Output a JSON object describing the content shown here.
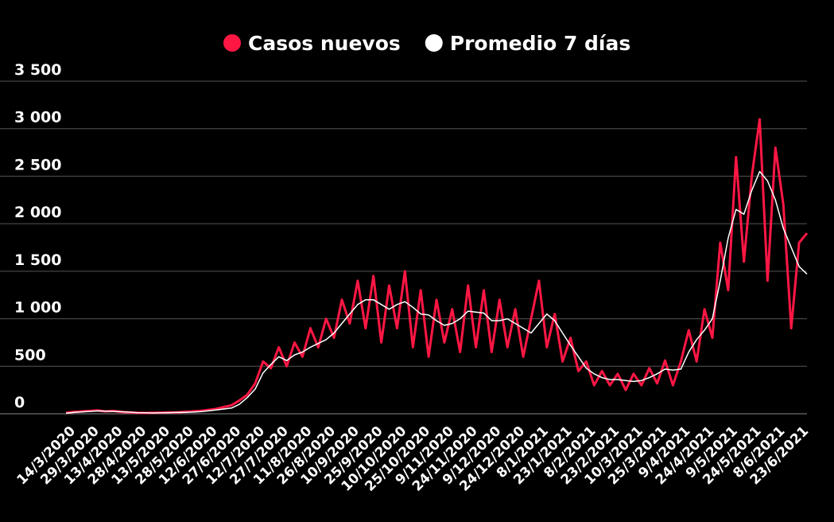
{
  "chart_data": {
    "type": "line",
    "categories": [
      "14/3/2020",
      null,
      null,
      "29/3/2020",
      null,
      null,
      "13/4/2020",
      null,
      null,
      "28/4/2020",
      null,
      null,
      "13/5/2020",
      null,
      null,
      "28/5/2020",
      null,
      null,
      "12/6/2020",
      null,
      null,
      "27/6/2020",
      null,
      null,
      "12/7/2020",
      null,
      null,
      "27/7/2020",
      null,
      null,
      "11/8/2020",
      null,
      null,
      "26/8/2020",
      null,
      null,
      "10/9/2020",
      null,
      null,
      "25/9/2020",
      null,
      null,
      "10/10/2020",
      null,
      null,
      "25/10/2020",
      null,
      null,
      "9/11/2020",
      null,
      null,
      "24/11/2020",
      null,
      null,
      "9/12/2020",
      null,
      null,
      "24/12/2020",
      null,
      null,
      "8/1/2021",
      null,
      null,
      "23/1/2021",
      null,
      null,
      "8/2/2021",
      null,
      null,
      "23/2/2021",
      null,
      null,
      "10/3/2021",
      null,
      null,
      "25/3/2021",
      null,
      null,
      "9/4/2021",
      null,
      null,
      "24/4/2021",
      null,
      null,
      "9/5/2021",
      null,
      null,
      "24/5/2021",
      null,
      null,
      "8/6/2021",
      null,
      null,
      "23/6/2021",
      null
    ],
    "series": [
      {
        "name": "Casos nuevos",
        "color": "#ff1744",
        "values": [
          10,
          20,
          25,
          30,
          35,
          25,
          30,
          20,
          15,
          10,
          8,
          10,
          12,
          15,
          15,
          20,
          25,
          30,
          40,
          50,
          70,
          90,
          140,
          200,
          320,
          550,
          480,
          700,
          500,
          750,
          600,
          900,
          700,
          1000,
          800,
          1200,
          950,
          1400,
          900,
          1450,
          750,
          1350,
          900,
          1500,
          700,
          1300,
          600,
          1200,
          750,
          1100,
          650,
          1350,
          700,
          1300,
          650,
          1200,
          700,
          1100,
          600,
          1000,
          1400,
          700,
          1050,
          550,
          800,
          450,
          550,
          300,
          450,
          300,
          420,
          250,
          420,
          300,
          480,
          320,
          560,
          300,
          550,
          880,
          550,
          1100,
          800,
          1800,
          1300,
          2700,
          1600,
          2500,
          3100,
          1400,
          2800,
          2200,
          900,
          1800,
          1900
        ]
      },
      {
        "name": "Promedio 7 días",
        "color": "#ffffff",
        "values": [
          5,
          15,
          20,
          25,
          30,
          28,
          25,
          22,
          18,
          12,
          10,
          8,
          10,
          12,
          14,
          15,
          18,
          22,
          30,
          40,
          50,
          60,
          100,
          170,
          260,
          430,
          520,
          600,
          560,
          620,
          650,
          700,
          740,
          780,
          850,
          950,
          1050,
          1150,
          1200,
          1200,
          1150,
          1100,
          1150,
          1180,
          1120,
          1050,
          1040,
          980,
          930,
          950,
          1000,
          1080,
          1070,
          1060,
          980,
          980,
          1000,
          950,
          900,
          850,
          950,
          1050,
          980,
          850,
          720,
          600,
          480,
          420,
          380,
          360,
          360,
          350,
          340,
          350,
          380,
          420,
          470,
          460,
          470,
          650,
          780,
          880,
          1000,
          1400,
          1850,
          2150,
          2100,
          2350,
          2550,
          2450,
          2250,
          1950,
          1750,
          1550,
          1470
        ]
      }
    ],
    "ylim": [
      0,
      3500
    ],
    "yticks": [
      0,
      500,
      {
        "value": 1000,
        "label": "1 000"
      },
      {
        "value": 1500,
        "label": "1 500"
      },
      {
        "value": 2000,
        "label": "2 000"
      },
      {
        "value": 2500,
        "label": "2 500"
      },
      {
        "value": 3000,
        "label": "3 000"
      },
      {
        "value": 3500,
        "label": "3 500"
      }
    ],
    "grid": true
  }
}
